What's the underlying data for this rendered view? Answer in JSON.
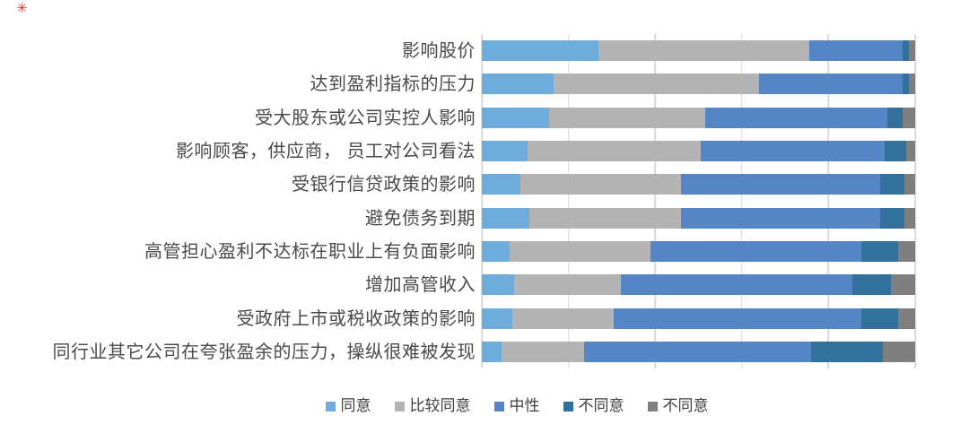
{
  "corner_mark": {
    "text": "✳",
    "color": "#CF3B3B"
  },
  "chart_data": {
    "type": "bar",
    "orientation": "horizontal",
    "stacked": true,
    "title": "",
    "xlabel": "",
    "ylabel": "",
    "xlim": [
      0,
      100
    ],
    "unit": "percent",
    "gridlines": {
      "show": true,
      "interval": 20,
      "color": "#D9D9D9"
    },
    "legend_position": "bottom",
    "categories": [
      "影响股价",
      "达到盈利指标的压力",
      "受大股东或公司实控人影响",
      "影响顾客，供应商， 员工对公司看法",
      "受银行信贷政策的影响",
      "避免债务到期",
      "高管担心盈利不达标在职业上有负面影响",
      "增加高管收入",
      "受政府上市或税收政策的影响",
      "同行业其它公司在夸张盈余的压力，操纵很难被发现"
    ],
    "series": [
      {
        "name": "同意",
        "color": "#6EACDC",
        "values": [
          27,
          16.5,
          15.5,
          10.5,
          9,
          11,
          6.5,
          7.5,
          7,
          4.5
        ]
      },
      {
        "name": "比较同意",
        "color": "#B3B3B3",
        "values": [
          48.5,
          47.5,
          36,
          40,
          37,
          35,
          32.5,
          24.5,
          23.5,
          19
        ]
      },
      {
        "name": "中性",
        "color": "#5585C5",
        "values": [
          21.5,
          33,
          42,
          42.5,
          46,
          46,
          48.5,
          53.5,
          57,
          52.5
        ]
      },
      {
        "name": "不同意",
        "color": "#31719B",
        "values": [
          1.5,
          1.5,
          3.5,
          5,
          5.5,
          5.5,
          8.5,
          9,
          8.5,
          16.5
        ]
      },
      {
        "name": "不同意",
        "color": "#7F7F7F",
        "values": [
          1.5,
          1.5,
          3,
          2,
          2.5,
          2.5,
          4,
          5.5,
          4,
          7.5
        ]
      }
    ]
  }
}
